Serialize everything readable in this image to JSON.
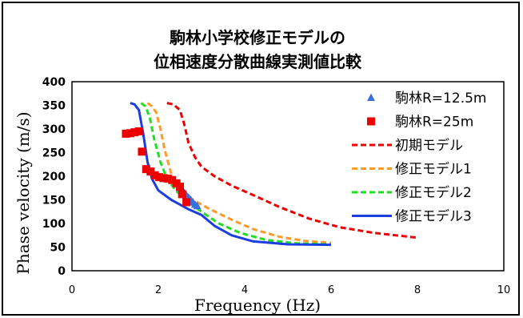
{
  "chart_data": {
    "type": "line",
    "title_lines": [
      "駒林小学校修正モデルの",
      "位相速度分散曲線実測値比較"
    ],
    "xlabel": "Frequency (Hz)",
    "ylabel": "Phase velocity (m/s)",
    "xlim": [
      0,
      10
    ],
    "ylim": [
      0,
      400
    ],
    "x_ticks": [
      0,
      2,
      4,
      6,
      8,
      10
    ],
    "y_ticks": [
      0,
      50,
      100,
      150,
      200,
      250,
      300,
      350,
      400
    ],
    "grid": false,
    "legend_position": "right",
    "series": [
      {
        "name": "駒林R=12.5m",
        "kind": "marker-triangle",
        "color": "#3a6fe0",
        "points": [
          [
            2.5,
            175
          ],
          [
            2.6,
            165
          ],
          [
            2.65,
            160
          ],
          [
            2.7,
            155
          ],
          [
            2.75,
            150
          ],
          [
            2.8,
            145
          ],
          [
            2.85,
            140
          ],
          [
            2.9,
            137
          ]
        ]
      },
      {
        "name": "駒林R=25m",
        "kind": "marker-square",
        "color": "#ee0000",
        "points": [
          [
            1.25,
            290
          ],
          [
            1.35,
            291
          ],
          [
            1.45,
            293
          ],
          [
            1.55,
            295
          ],
          [
            1.62,
            252
          ],
          [
            1.72,
            215
          ],
          [
            1.82,
            210
          ],
          [
            1.92,
            202
          ],
          [
            2.02,
            198
          ],
          [
            2.12,
            196
          ],
          [
            2.22,
            195
          ],
          [
            2.32,
            192
          ],
          [
            2.42,
            185
          ],
          [
            2.5,
            178
          ],
          [
            2.55,
            162
          ],
          [
            2.65,
            145
          ]
        ]
      },
      {
        "name": "初期モデル",
        "kind": "line",
        "dash": "dashed",
        "color": "#ee0000",
        "points": [
          [
            2.2,
            355
          ],
          [
            2.35,
            352
          ],
          [
            2.5,
            340
          ],
          [
            2.6,
            310
          ],
          [
            2.7,
            270
          ],
          [
            2.85,
            240
          ],
          [
            3.0,
            220
          ],
          [
            3.3,
            200
          ],
          [
            3.7,
            180
          ],
          [
            4.2,
            160
          ],
          [
            4.8,
            135
          ],
          [
            5.5,
            110
          ],
          [
            6.2,
            92
          ],
          [
            7.0,
            80
          ],
          [
            8.0,
            70
          ]
        ]
      },
      {
        "name": "修正モデル1",
        "kind": "line",
        "dash": "dashed",
        "color": "#ff9a28",
        "points": [
          [
            1.75,
            355
          ],
          [
            1.85,
            348
          ],
          [
            1.95,
            335
          ],
          [
            2.05,
            300
          ],
          [
            2.15,
            255
          ],
          [
            2.3,
            205
          ],
          [
            2.5,
            175
          ],
          [
            2.8,
            150
          ],
          [
            3.2,
            130
          ],
          [
            3.7,
            108
          ],
          [
            4.2,
            88
          ],
          [
            4.8,
            72
          ],
          [
            5.4,
            63
          ],
          [
            6.0,
            59
          ]
        ]
      },
      {
        "name": "修正モデル2",
        "kind": "line",
        "dash": "dashed",
        "color": "#22dd22",
        "points": [
          [
            1.6,
            355
          ],
          [
            1.7,
            348
          ],
          [
            1.8,
            325
          ],
          [
            1.9,
            280
          ],
          [
            2.05,
            230
          ],
          [
            2.2,
            195
          ],
          [
            2.4,
            170
          ],
          [
            2.7,
            145
          ],
          [
            3.0,
            125
          ],
          [
            3.4,
            100
          ],
          [
            3.9,
            80
          ],
          [
            4.5,
            65
          ],
          [
            5.2,
            58
          ],
          [
            6.0,
            56
          ]
        ]
      },
      {
        "name": "修正モデル3",
        "kind": "line",
        "dash": "solid",
        "color": "#1a3ee0",
        "points": [
          [
            1.35,
            355
          ],
          [
            1.45,
            352
          ],
          [
            1.55,
            340
          ],
          [
            1.65,
            290
          ],
          [
            1.75,
            230
          ],
          [
            1.85,
            195
          ],
          [
            2.0,
            170
          ],
          [
            2.3,
            150
          ],
          [
            2.7,
            130
          ],
          [
            3.0,
            118
          ],
          [
            3.3,
            95
          ],
          [
            3.7,
            75
          ],
          [
            4.2,
            62
          ],
          [
            5.0,
            56
          ],
          [
            6.0,
            55
          ]
        ]
      }
    ]
  }
}
